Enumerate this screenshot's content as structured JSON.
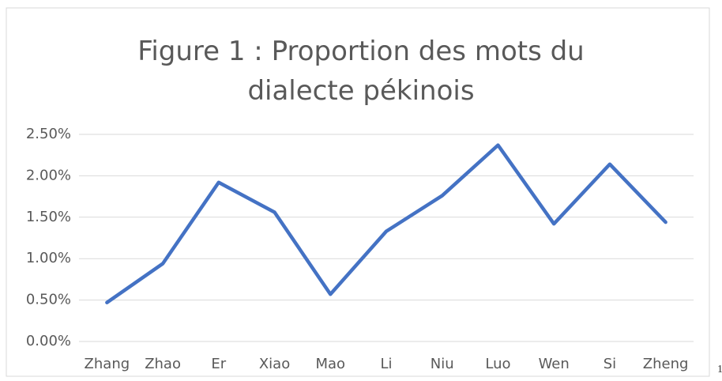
{
  "chart_data": {
    "type": "line",
    "title": "Figure 1 : Proportion des mots du dialecte pékinois",
    "categories": [
      "Zhang",
      "Zhao",
      "Er",
      "Xiao",
      "Mao",
      "Li",
      "Niu",
      "Luo",
      "Wen",
      "Si",
      "Zheng"
    ],
    "series": [
      {
        "name": "Proportion",
        "color": "#4472c4",
        "values": [
          0.47,
          0.94,
          1.92,
          1.56,
          0.57,
          1.33,
          1.76,
          2.37,
          1.42,
          2.14,
          1.44
        ]
      }
    ],
    "ylim": [
      0,
      2.5
    ],
    "yticks": [
      {
        "value": 0,
        "label": "0.00%"
      },
      {
        "value": 0.5,
        "label": "0.50%"
      },
      {
        "value": 1,
        "label": "1.00%"
      },
      {
        "value": 1.5,
        "label": "1.50%"
      },
      {
        "value": 2,
        "label": "2.00%"
      },
      {
        "value": 2.5,
        "label": "2.50%"
      }
    ],
    "grid": true
  },
  "side_text": "1"
}
